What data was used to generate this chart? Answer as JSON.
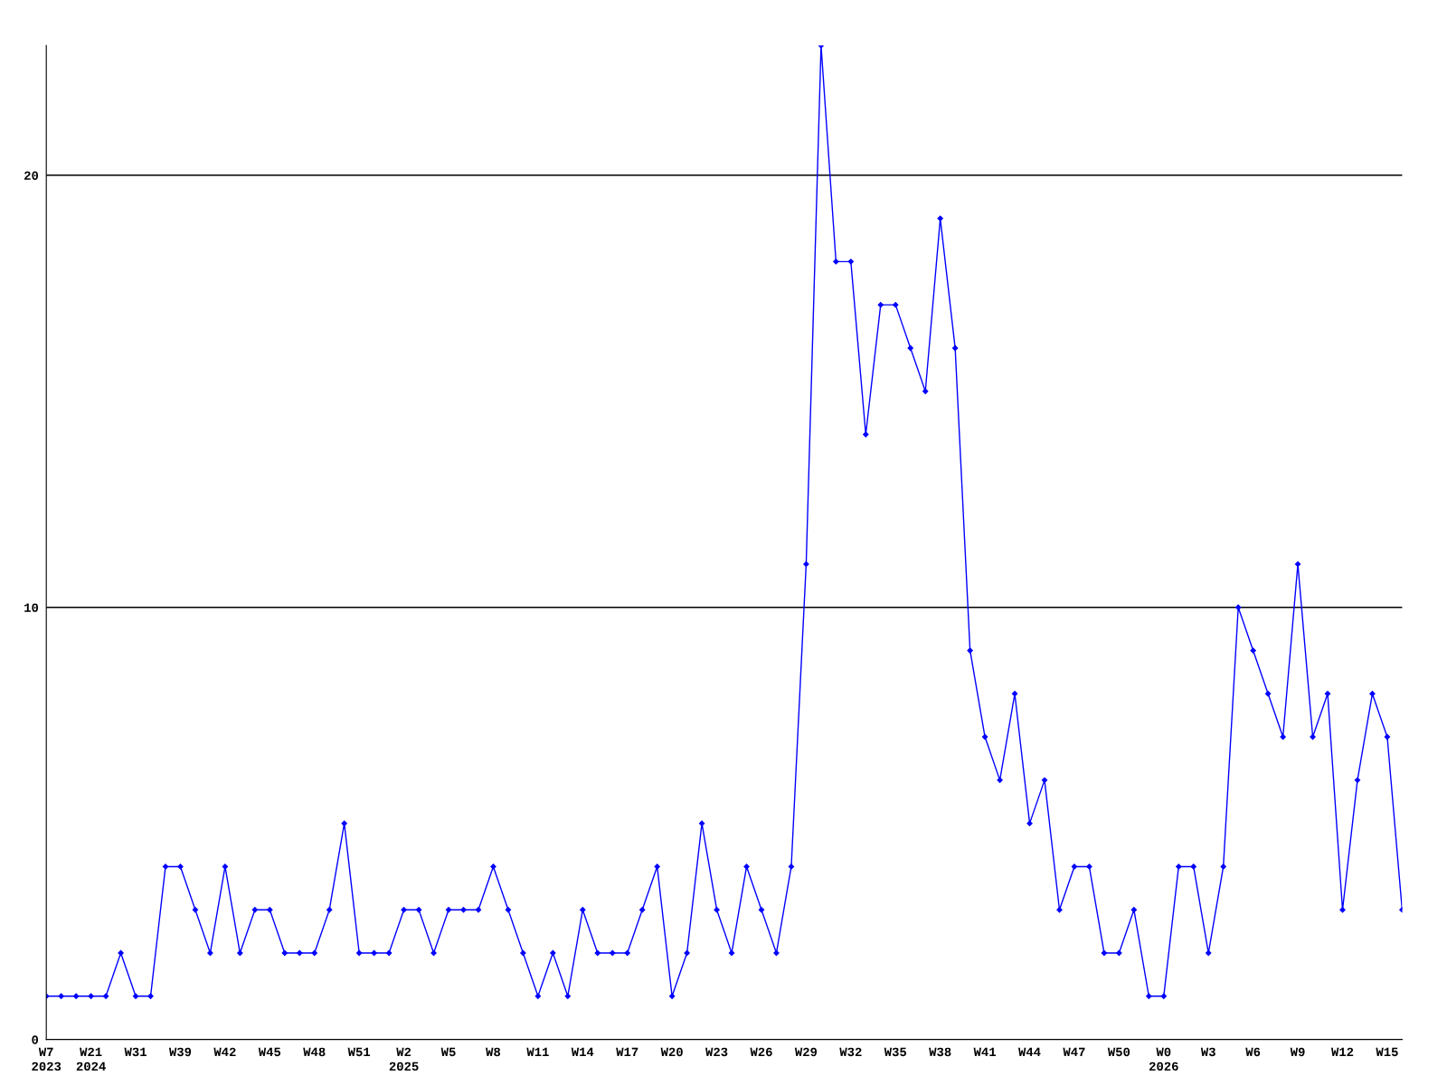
{
  "chart_data": {
    "type": "line",
    "categories": [
      "W7\n2023",
      null,
      null,
      "W21\n2024",
      null,
      null,
      "W31",
      null,
      null,
      "W39",
      null,
      null,
      "W42",
      null,
      null,
      "W45",
      null,
      null,
      "W48",
      null,
      null,
      "W51",
      null,
      null,
      "W2\n2025",
      null,
      null,
      "W5",
      null,
      null,
      "W8",
      null,
      null,
      "W11",
      null,
      null,
      "W14",
      null,
      null,
      "W17",
      null,
      null,
      "W20",
      null,
      null,
      "W23",
      null,
      null,
      "W26",
      null,
      null,
      "W29",
      null,
      null,
      "W32",
      null,
      null,
      "W35",
      null,
      null,
      "W38",
      null,
      null,
      "W41",
      null,
      null,
      "W44",
      null,
      null,
      "W47",
      null,
      null,
      "W50",
      null,
      null,
      "W0\n2026",
      null,
      null,
      "W3",
      null,
      null,
      "W6",
      null,
      null,
      "W9",
      null,
      null,
      "W12",
      null,
      null,
      "W15",
      null
    ],
    "series": [
      {
        "color": "#0000ff",
        "values": [
          1,
          1,
          1,
          1,
          1,
          2,
          1,
          1,
          4,
          4,
          3,
          2,
          4,
          2,
          3,
          3,
          2,
          2,
          2,
          3,
          5,
          2,
          2,
          2,
          3,
          3,
          2,
          3,
          3,
          3,
          4,
          3,
          2,
          1,
          2,
          1,
          3,
          2,
          2,
          2,
          3,
          4,
          1,
          2,
          5,
          3,
          2,
          4,
          3,
          2,
          4,
          11,
          23,
          18,
          18,
          14,
          17,
          17,
          16,
          15,
          19,
          16,
          9,
          7,
          6,
          8,
          5,
          6,
          3,
          4,
          4,
          2,
          2,
          3,
          1,
          1,
          4,
          4,
          2,
          4,
          10,
          9,
          8,
          7,
          11,
          7,
          8,
          3,
          6,
          8,
          7,
          3
        ]
      }
    ],
    "ylim": [
      0,
      23
    ],
    "yticks": [
      0,
      10,
      20
    ],
    "grid": "y",
    "marker": "diamond",
    "line_style": "solid"
  }
}
